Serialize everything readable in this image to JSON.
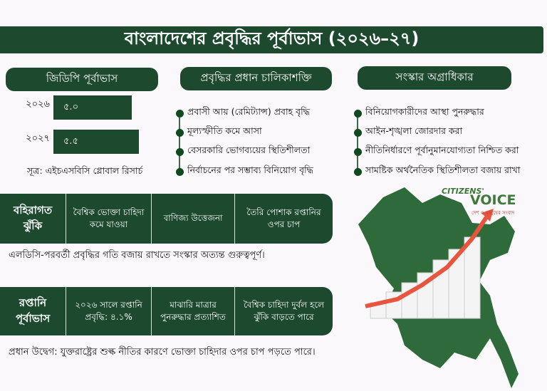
{
  "title": "বাংলাদেশের প্রবৃদ্ধির পূর্বাভাস (২০২৬–২৭)",
  "gdp": {
    "header": "জিডিপি পূর্বাভাস",
    "source": "সূত্র: এইচএসবিসি গ্লোবাল রিসার্চ",
    "chart_data": {
      "type": "bar",
      "orientation": "horizontal",
      "categories": [
        "২০২৬",
        "২০২৭"
      ],
      "values": [
        5.0,
        5.5
      ],
      "value_labels": [
        "৫.০",
        "৫.৫"
      ]
    }
  },
  "drivers": {
    "header": "প্রবৃদ্ধির প্রধান চালিকাশক্তি",
    "items": [
      "প্রবাসী আয় (রেমিট্যান্স) প্রবাহ বৃদ্ধি",
      "মূল্যস্ফীতি কমে আসা",
      "বেসরকারি ভোগব্যয়ের স্থিতিশীলতা",
      "নির্বাচনের পর সম্ভাব্য বিনিয়োগ বৃদ্ধি"
    ]
  },
  "reforms": {
    "header": "সংস্কার অগ্রাধিকার",
    "items": [
      "বিনিয়োগকারীদের আস্থা পুনরুদ্ধার",
      "আইন-শৃঙ্খলা জোরদার করা",
      "নীতিনির্ধারণে পূর্বানুমানযোগ্যতা নিশ্চিত করা",
      "সামষ্টিক অর্থনৈতিক স্থিতিশীলতা বজায় রাখা"
    ]
  },
  "risks": {
    "header": "বহিরাগত ঝুঁকি",
    "cells": [
      "বৈশ্বিক ভোক্তা চাহিদা কমে যাওয়া",
      "বাণিজ্য উত্তেজনা",
      "তৈরি পোশাক রপ্তানির ওপর চাপ"
    ],
    "note": "এলডিসি-পরবর্তী প্রবৃদ্ধির গতি বজায় রাখতে সংস্কার অত্যন্ত গুরুত্বপূর্ণ।"
  },
  "exports": {
    "header": "রপ্তানি পূর্বাভাস",
    "cells": [
      "২০২৬ সালে রপ্তানি প্রবৃদ্ধি: ৪.১%",
      "মাঝারি মাত্রার পুনরুদ্ধার প্রত্যাশিত",
      "বৈশ্বিক চাহিদা দুর্বল হলে ঝুঁকি বাড়তে পারে"
    ],
    "note": "প্রধান উদ্বেগ: যুক্তরাষ্ট্রের শুল্ক নীতির কারণে ভোক্তা চাহিদার ওপর চাপ পড়তে পারে।"
  },
  "logo": {
    "line1": "CITIZENS'",
    "line2": "VOICE",
    "tagline": "দেশ ও মানুষের সংবাদ"
  },
  "colors": {
    "primary": "#1d4a2e",
    "arrow": "#e8553e",
    "map": "#2f6b3a"
  }
}
